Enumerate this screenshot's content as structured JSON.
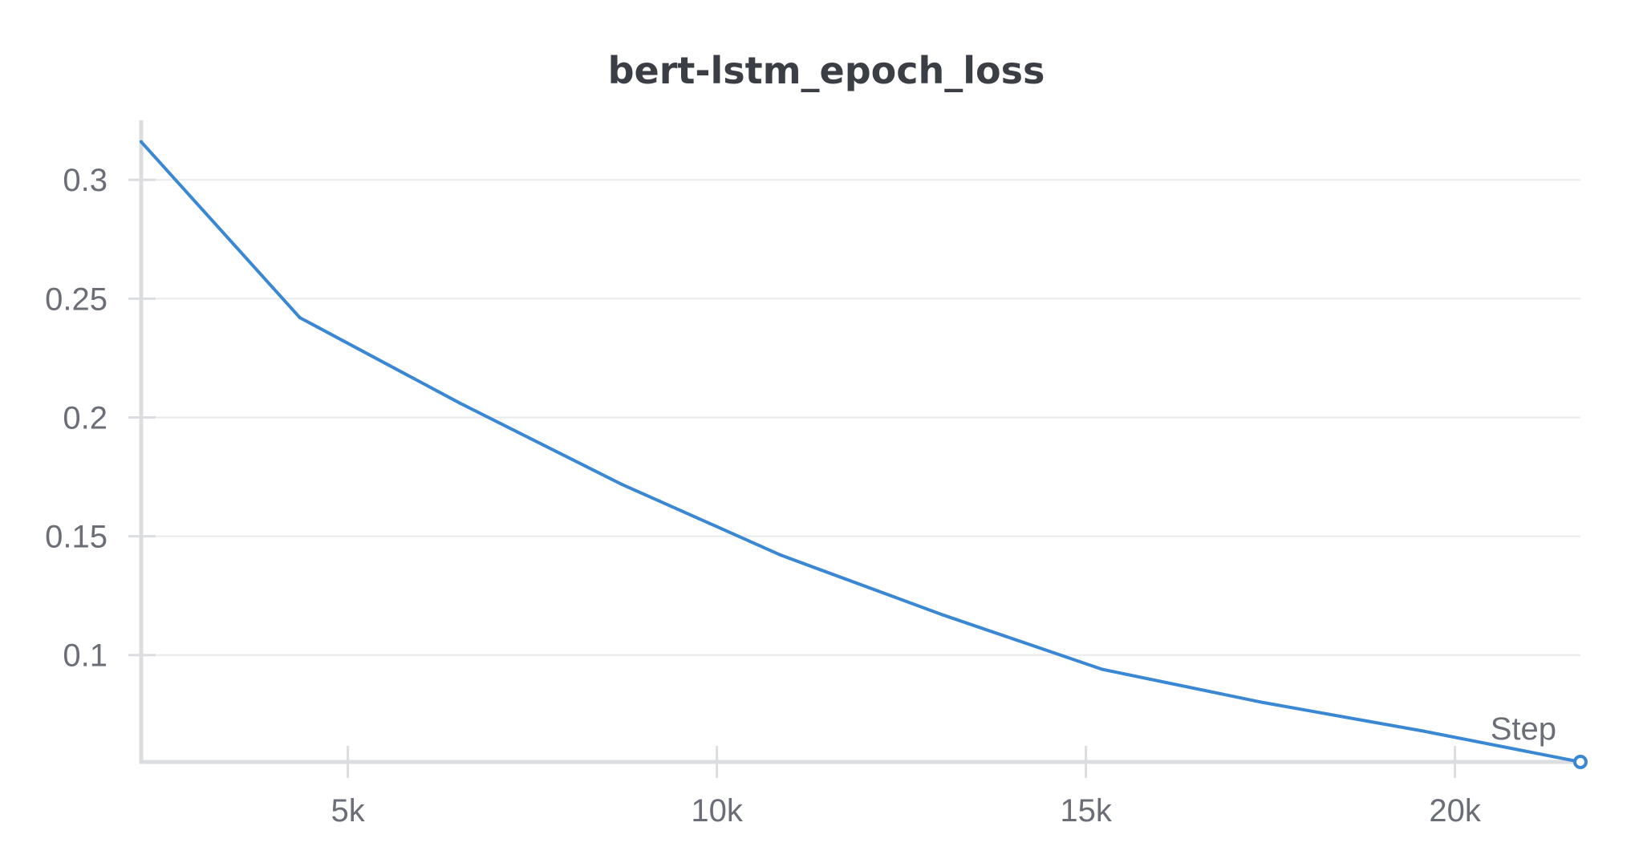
{
  "chart_data": {
    "type": "line",
    "title": "bert-lstm_epoch_loss",
    "xlabel": "Step",
    "ylabel": "",
    "xlim": [
      2200,
      21700
    ],
    "ylim": [
      0.055,
      0.32
    ],
    "x_ticks": [
      {
        "value": 5000,
        "label": "5k"
      },
      {
        "value": 10000,
        "label": "10k"
      },
      {
        "value": 15000,
        "label": "15k"
      },
      {
        "value": 20000,
        "label": "20k"
      }
    ],
    "y_ticks": [
      {
        "value": 0.1,
        "label": "0.1"
      },
      {
        "value": 0.15,
        "label": "0.15"
      },
      {
        "value": 0.2,
        "label": "0.2"
      },
      {
        "value": 0.25,
        "label": "0.25"
      },
      {
        "value": 0.3,
        "label": "0.3"
      }
    ],
    "grid": true,
    "legend": "none",
    "series": [
      {
        "color": "#3a88d4",
        "x": [
          2200,
          4350,
          6520,
          8700,
          10870,
          13050,
          15220,
          17400,
          19570,
          21700
        ],
        "y": [
          0.316,
          0.242,
          0.206,
          0.172,
          0.142,
          0.117,
          0.094,
          0.08,
          0.068,
          0.055
        ]
      }
    ]
  }
}
